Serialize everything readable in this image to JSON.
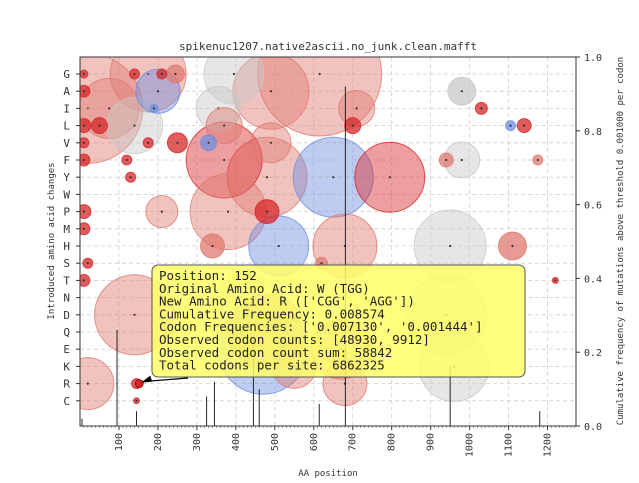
{
  "chart_data": {
    "type": "scatter",
    "title": "spikenuc1207.native2ascii.no_junk.clean.mafft",
    "xlabel": "AA position",
    "ylabel": "Introduced amino acid changes",
    "y2label": "Cumulative frequency of mutations above threshold 0.001000 per codon",
    "xlim": [
      0,
      1273
    ],
    "y2lim": [
      0.0,
      1.0
    ],
    "grid": true,
    "x_ticks": [
      "100",
      "200",
      "300",
      "400",
      "500",
      "600",
      "700",
      "800",
      "900",
      "1000",
      "1100",
      "1200"
    ],
    "y2_ticks": [
      "0.0",
      "0.2",
      "0.4",
      "0.6",
      "0.8",
      "1.0"
    ],
    "categories": [
      "G",
      "A",
      "I",
      "L",
      "V",
      "F",
      "Y",
      "W",
      "P",
      "M",
      "H",
      "S",
      "T",
      "N",
      "D",
      "Q",
      "E",
      "K",
      "R",
      "C"
    ],
    "colors": {
      "red": "#d62728",
      "red_soft": "#e07a70",
      "blue": "#6f8fe0",
      "grey": "#c8c8c8",
      "tooltip_fill": "#ffff66",
      "tooltip_edge": "#555555",
      "line": "#111111"
    },
    "points": [
      {
        "x": 10,
        "aa": "G",
        "r": 4,
        "c": "red"
      },
      {
        "x": 140,
        "aa": "G",
        "r": 5,
        "c": "red"
      },
      {
        "x": 175,
        "aa": "G",
        "r": 38,
        "c": "red_soft"
      },
      {
        "x": 210,
        "aa": "G",
        "r": 5,
        "c": "red"
      },
      {
        "x": 245,
        "aa": "G",
        "r": 9,
        "c": "red_soft"
      },
      {
        "x": 395,
        "aa": "G",
        "r": 30,
        "c": "grey"
      },
      {
        "x": 615,
        "aa": "G",
        "r": 62,
        "c": "red_soft"
      },
      {
        "x": 10,
        "aa": "A",
        "r": 6,
        "c": "red"
      },
      {
        "x": 200,
        "aa": "A",
        "r": 22,
        "c": "blue"
      },
      {
        "x": 490,
        "aa": "A",
        "r": 38,
        "c": "red_soft"
      },
      {
        "x": 980,
        "aa": "A",
        "r": 14,
        "c": "grey"
      },
      {
        "x": 20,
        "aa": "I",
        "r": 55,
        "c": "red_soft"
      },
      {
        "x": 75,
        "aa": "I",
        "r": 30,
        "c": "red_soft"
      },
      {
        "x": 190,
        "aa": "I",
        "r": 4,
        "c": "blue"
      },
      {
        "x": 355,
        "aa": "I",
        "r": 22,
        "c": "grey"
      },
      {
        "x": 710,
        "aa": "I",
        "r": 18,
        "c": "red_soft"
      },
      {
        "x": 1030,
        "aa": "I",
        "r": 6,
        "c": "red"
      },
      {
        "x": 10,
        "aa": "L",
        "r": 7,
        "c": "red"
      },
      {
        "x": 50,
        "aa": "L",
        "r": 8,
        "c": "red"
      },
      {
        "x": 140,
        "aa": "L",
        "r": 28,
        "c": "grey"
      },
      {
        "x": 370,
        "aa": "L",
        "r": 18,
        "c": "red_soft"
      },
      {
        "x": 700,
        "aa": "L",
        "r": 8,
        "c": "red"
      },
      {
        "x": 1105,
        "aa": "L",
        "r": 5,
        "c": "blue"
      },
      {
        "x": 1140,
        "aa": "L",
        "r": 7,
        "c": "red"
      },
      {
        "x": 10,
        "aa": "V",
        "r": 5,
        "c": "red"
      },
      {
        "x": 175,
        "aa": "V",
        "r": 5,
        "c": "red"
      },
      {
        "x": 250,
        "aa": "V",
        "r": 10,
        "c": "red"
      },
      {
        "x": 330,
        "aa": "V",
        "r": 8,
        "c": "blue"
      },
      {
        "x": 490,
        "aa": "V",
        "r": 20,
        "c": "red_soft"
      },
      {
        "x": 10,
        "aa": "F",
        "r": 6,
        "c": "red"
      },
      {
        "x": 120,
        "aa": "F",
        "r": 5,
        "c": "red"
      },
      {
        "x": 370,
        "aa": "F",
        "r": 38,
        "c": "red"
      },
      {
        "x": 940,
        "aa": "F",
        "r": 7,
        "c": "red_soft"
      },
      {
        "x": 980,
        "aa": "F",
        "r": 18,
        "c": "grey"
      },
      {
        "x": 1175,
        "aa": "F",
        "r": 5,
        "c": "red_soft"
      },
      {
        "x": 130,
        "aa": "Y",
        "r": 5,
        "c": "red"
      },
      {
        "x": 480,
        "aa": "Y",
        "r": 40,
        "c": "red_soft"
      },
      {
        "x": 650,
        "aa": "Y",
        "r": 40,
        "c": "blue"
      },
      {
        "x": 795,
        "aa": "Y",
        "r": 35,
        "c": "red"
      },
      {
        "x": 10,
        "aa": "P",
        "r": 7,
        "c": "red"
      },
      {
        "x": 210,
        "aa": "P",
        "r": 16,
        "c": "red_soft"
      },
      {
        "x": 380,
        "aa": "P",
        "r": 38,
        "c": "red_soft"
      },
      {
        "x": 480,
        "aa": "P",
        "r": 12,
        "c": "red"
      },
      {
        "x": 10,
        "aa": "M",
        "r": 6,
        "c": "red"
      },
      {
        "x": 340,
        "aa": "H",
        "r": 12,
        "c": "red_soft"
      },
      {
        "x": 510,
        "aa": "H",
        "r": 30,
        "c": "blue"
      },
      {
        "x": 680,
        "aa": "H",
        "r": 32,
        "c": "red_soft"
      },
      {
        "x": 950,
        "aa": "H",
        "r": 36,
        "c": "grey"
      },
      {
        "x": 1110,
        "aa": "H",
        "r": 14,
        "c": "red_soft"
      },
      {
        "x": 20,
        "aa": "S",
        "r": 5,
        "c": "red"
      },
      {
        "x": 620,
        "aa": "S",
        "r": 6,
        "c": "red_soft"
      },
      {
        "x": 10,
        "aa": "T",
        "r": 6,
        "c": "red"
      },
      {
        "x": 1220,
        "aa": "T",
        "r": 3,
        "c": "red"
      },
      {
        "x": 140,
        "aa": "D",
        "r": 40,
        "c": "red_soft"
      },
      {
        "x": 430,
        "aa": "D",
        "r": 40,
        "c": "grey"
      },
      {
        "x": 940,
        "aa": "D",
        "r": 40,
        "c": "grey"
      },
      {
        "x": 480,
        "aa": "Q",
        "r": 38,
        "c": "red_soft"
      },
      {
        "x": 470,
        "aa": "E",
        "r": 45,
        "c": "blue"
      },
      {
        "x": 670,
        "aa": "E",
        "r": 30,
        "c": "red_soft"
      },
      {
        "x": 550,
        "aa": "K",
        "r": 22,
        "c": "red_soft"
      },
      {
        "x": 960,
        "aa": "K",
        "r": 35,
        "c": "grey"
      },
      {
        "x": 20,
        "aa": "R",
        "r": 26,
        "c": "red_soft"
      },
      {
        "x": 145,
        "aa": "R",
        "r": 5,
        "c": "red"
      },
      {
        "x": 680,
        "aa": "R",
        "r": 22,
        "c": "red_soft"
      },
      {
        "x": 145,
        "aa": "C",
        "r": 3,
        "c": "red"
      }
    ],
    "cumulative_lines": [
      {
        "x": 5,
        "y": 0.02
      },
      {
        "x": 95,
        "y": 0.26
      },
      {
        "x": 145,
        "y": 0.04
      },
      {
        "x": 325,
        "y": 0.08
      },
      {
        "x": 345,
        "y": 0.12
      },
      {
        "x": 445,
        "y": 0.22
      },
      {
        "x": 460,
        "y": 0.1
      },
      {
        "x": 614,
        "y": 0.06
      },
      {
        "x": 681,
        "y": 0.92
      },
      {
        "x": 950,
        "y": 0.16
      },
      {
        "x": 1180,
        "y": 0.04
      }
    ],
    "tooltip": {
      "target": {
        "x": 152,
        "aa": "R"
      },
      "lines": [
        "Position: 152",
        "Original Amino Acid: W (TGG)",
        "New Amino Acid: R (['CGG', 'AGG'])",
        "Cumulative Frequency: 0.008574",
        "Codon Frequencies: ['0.007130', '0.001444']",
        "Observed codon counts: [48930, 9912]",
        "Observed codon count sum: 58842",
        "Total codons per site: 6862325"
      ]
    }
  }
}
